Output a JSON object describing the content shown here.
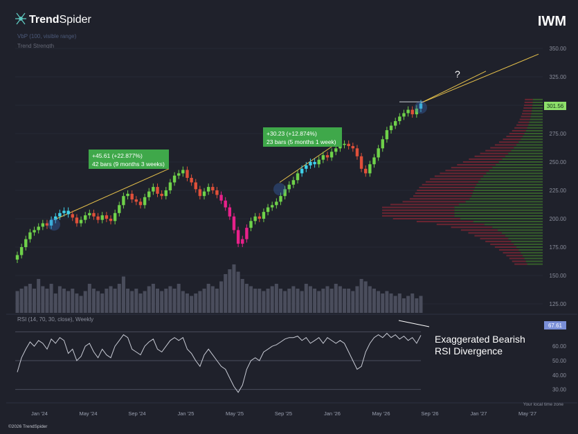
{
  "brand": {
    "prefix": "Trend",
    "suffix": "Spider"
  },
  "ticker": "IWM",
  "indicators": {
    "vbp": "VbP (100, visible range)",
    "trend": "Trend Strength"
  },
  "rsi_label": "RSI (14, 70, 30, close), Weekly",
  "annotation": {
    "line1": "Exaggerated Bearish",
    "line2": "RSI Divergence"
  },
  "question_mark": "?",
  "footer": {
    "copyright": "©2026 TrendSpider",
    "timezone": "Your local time zone"
  },
  "callouts": [
    {
      "line1": "+45.61 (+22.877%)",
      "line2": "42 bars (9 months 3 weeks)"
    },
    {
      "line1": "+30.23 (+12.874%)",
      "line2": "23 bars (5 months 1 week)"
    }
  ],
  "colors": {
    "up": "#6fd14a",
    "down": "#e0503a",
    "cyan": "#3fd0e8",
    "magenta": "#e8218a",
    "trendline": "#e7c24b",
    "callout_bg": "#3fa84a",
    "price_tag": "#8ee06a"
  },
  "chart_data": [
    {
      "type": "candlestick",
      "x_ticks": [
        "Jan '24",
        "May '24",
        "Sep '24",
        "Jan '25",
        "May '25",
        "Sep '25",
        "Jan '26",
        "May '26",
        "Sep '26",
        "Jan '27",
        "May '27"
      ],
      "y_ticks": [
        "350.00",
        "325.00",
        "300.00",
        "275.00",
        "250.00",
        "225.00",
        "200.00",
        "175.00",
        "150.00",
        "125.00"
      ],
      "ylim": [
        115,
        360
      ],
      "last_price": "301.56",
      "weekly_close": [
        168,
        175,
        182,
        188,
        190,
        193,
        196,
        194,
        199,
        202,
        205,
        207,
        204,
        201,
        196,
        199,
        203,
        205,
        202,
        199,
        203,
        200,
        198,
        205,
        212,
        220,
        222,
        217,
        215,
        212,
        219,
        224,
        228,
        222,
        220,
        225,
        232,
        238,
        240,
        243,
        236,
        232,
        226,
        220,
        224,
        228,
        225,
        221,
        216,
        210,
        202,
        190,
        178,
        182,
        192,
        198,
        202,
        200,
        206,
        210,
        212,
        215,
        220,
        226,
        230,
        234,
        240,
        244,
        247,
        250,
        248,
        252,
        256,
        254,
        259,
        262,
        265,
        266,
        264,
        262,
        255,
        244,
        240,
        248,
        254,
        262,
        270,
        278,
        282,
        286,
        290,
        293,
        296,
        292,
        297,
        301.56
      ],
      "volume_relative": [
        0.45,
        0.5,
        0.55,
        0.6,
        0.5,
        0.7,
        0.55,
        0.5,
        0.6,
        0.4,
        0.55,
        0.5,
        0.45,
        0.5,
        0.4,
        0.35,
        0.45,
        0.6,
        0.5,
        0.45,
        0.4,
        0.5,
        0.55,
        0.5,
        0.6,
        0.75,
        0.5,
        0.45,
        0.5,
        0.4,
        0.45,
        0.55,
        0.6,
        0.5,
        0.45,
        0.5,
        0.55,
        0.5,
        0.6,
        0.45,
        0.4,
        0.35,
        0.4,
        0.45,
        0.5,
        0.6,
        0.55,
        0.5,
        0.65,
        0.8,
        0.9,
        1.0,
        0.85,
        0.7,
        0.6,
        0.55,
        0.5,
        0.5,
        0.45,
        0.5,
        0.55,
        0.6,
        0.5,
        0.45,
        0.5,
        0.55,
        0.5,
        0.45,
        0.6,
        0.55,
        0.5,
        0.45,
        0.5,
        0.55,
        0.5,
        0.6,
        0.55,
        0.5,
        0.5,
        0.45,
        0.55,
        0.7,
        0.65,
        0.55,
        0.5,
        0.45,
        0.4,
        0.45,
        0.4,
        0.35,
        0.4,
        0.3,
        0.35,
        0.4,
        0.3,
        0.35
      ]
    },
    {
      "type": "line",
      "title": "RSI (14, 70, 30, close), Weekly",
      "y_ticks": [
        "60.00",
        "50.00",
        "40.00",
        "30.00"
      ],
      "ylim": [
        25,
        75
      ],
      "last_value": "67.61",
      "values": [
        42,
        52,
        58,
        63,
        60,
        64,
        62,
        58,
        65,
        62,
        66,
        64,
        55,
        58,
        50,
        53,
        60,
        62,
        56,
        52,
        58,
        54,
        52,
        60,
        64,
        68,
        66,
        58,
        56,
        54,
        60,
        63,
        65,
        58,
        56,
        60,
        64,
        66,
        64,
        66,
        58,
        55,
        50,
        46,
        54,
        58,
        54,
        50,
        46,
        44,
        38,
        32,
        28,
        33,
        44,
        50,
        52,
        50,
        56,
        58,
        60,
        61,
        63,
        65,
        66,
        66,
        67,
        64,
        66,
        62,
        64,
        66,
        62,
        66,
        64,
        62,
        64,
        62,
        56,
        50,
        44,
        46,
        56,
        62,
        66,
        68,
        66,
        69,
        66,
        68,
        65,
        67,
        64,
        66,
        62,
        67.61
      ]
    }
  ]
}
